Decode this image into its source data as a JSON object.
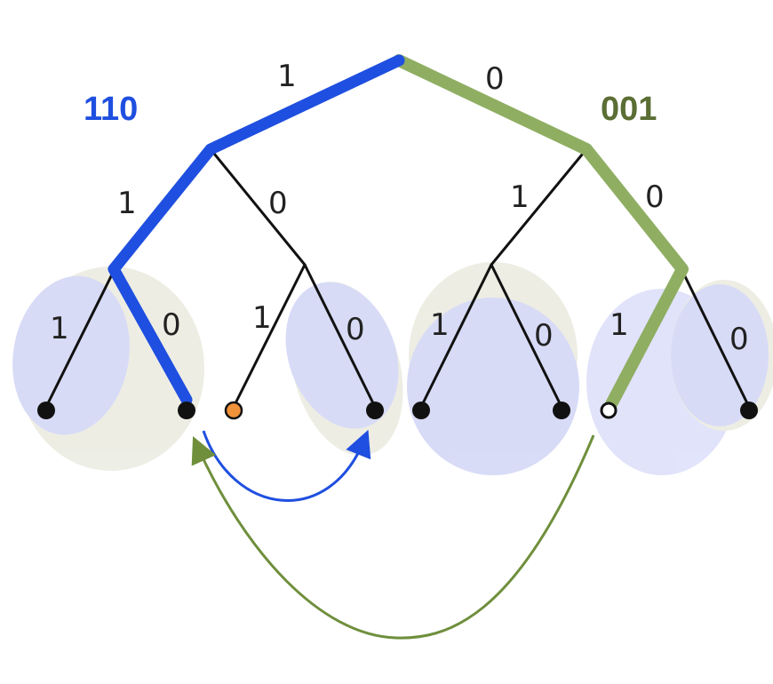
{
  "paths": {
    "left": {
      "code": "110",
      "color": "#1f4fe0"
    },
    "right": {
      "code": "001",
      "color": "#8fae62",
      "label_color": "#5b6e34"
    }
  },
  "edge_labels": {
    "root_left": "1",
    "root_right": "0",
    "a_left": "1",
    "a_right": "0",
    "b_left": "1",
    "b_right": "0",
    "c_left": "1",
    "c_right": "0",
    "d_left": "1",
    "d_right": "0",
    "e_left": "1",
    "e_right": "0",
    "f_left": "1",
    "f_right": "0"
  },
  "colors": {
    "tree_edge": "#111111",
    "leaf": "#111111",
    "special_leaf": "#f0923a",
    "blob_lavender": "#c9cdf2",
    "blob_beige": "#e6e7d8",
    "arrow_blue": "#1f4fe0",
    "arrow_green": "#6f8f3c"
  }
}
